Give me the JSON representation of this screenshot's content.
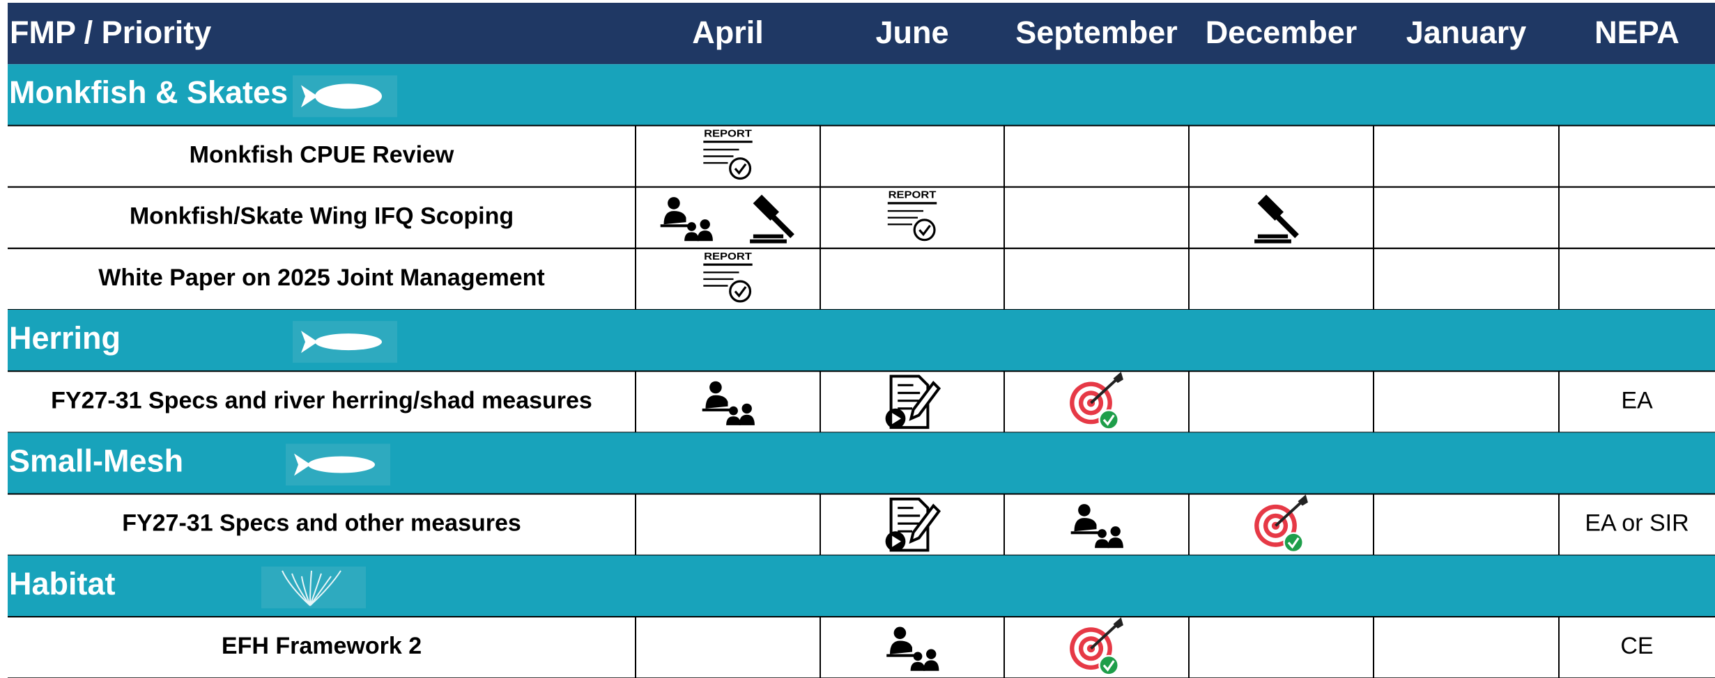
{
  "header": {
    "columns": [
      "FMP / Priority",
      "April",
      "June",
      "September",
      "December",
      "January",
      "NEPA"
    ]
  },
  "report_icon_text": "REPORT",
  "sections": [
    {
      "title": "Monkfish & Skates",
      "rows": [
        {
          "label": "Monkfish CPUE Review"
        },
        {
          "label": "Monkfish/Skate Wing IFQ Scoping"
        },
        {
          "label": "White Paper on 2025 Joint Management"
        }
      ]
    },
    {
      "title": "Herring",
      "rows": [
        {
          "label": "FY27-31 Specs and river herring/shad measures",
          "nepa": "EA"
        }
      ]
    },
    {
      "title": "Small-Mesh",
      "rows": [
        {
          "label": "FY27-31 Specs and other measures",
          "nepa": "EA or SIR"
        }
      ]
    },
    {
      "title": "Habitat",
      "rows": [
        {
          "label": "EFH Framework 2",
          "nepa": "CE"
        }
      ]
    }
  ]
}
